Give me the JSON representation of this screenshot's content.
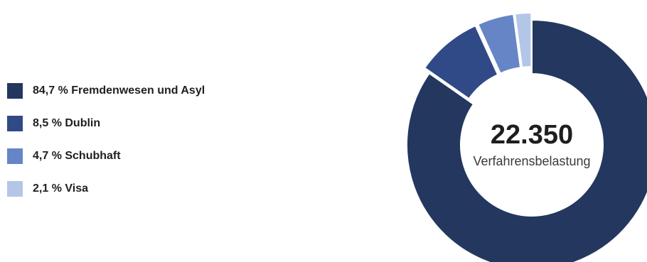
{
  "chart_data": {
    "type": "pie",
    "variant": "donut",
    "categories": [
      "Fremdenwesen und Asyl",
      "Dublin",
      "Schubhaft",
      "Visa"
    ],
    "values": [
      84.7,
      8.5,
      4.7,
      2.1
    ],
    "labels": [
      "84,7 % Fremdenwesen und Asyl",
      "8,5 % Dublin",
      "4,7 % Schubhaft",
      "2,1 % Visa"
    ],
    "colors": [
      "#23375f",
      "#2f4a86",
      "#6585c6",
      "#b4c6e7"
    ],
    "highlighted": [
      "Dublin",
      "Schubhaft",
      "Visa"
    ],
    "legend_position": "left",
    "center": {
      "value": "22.350",
      "label": "Verfahrensbelastung"
    }
  }
}
